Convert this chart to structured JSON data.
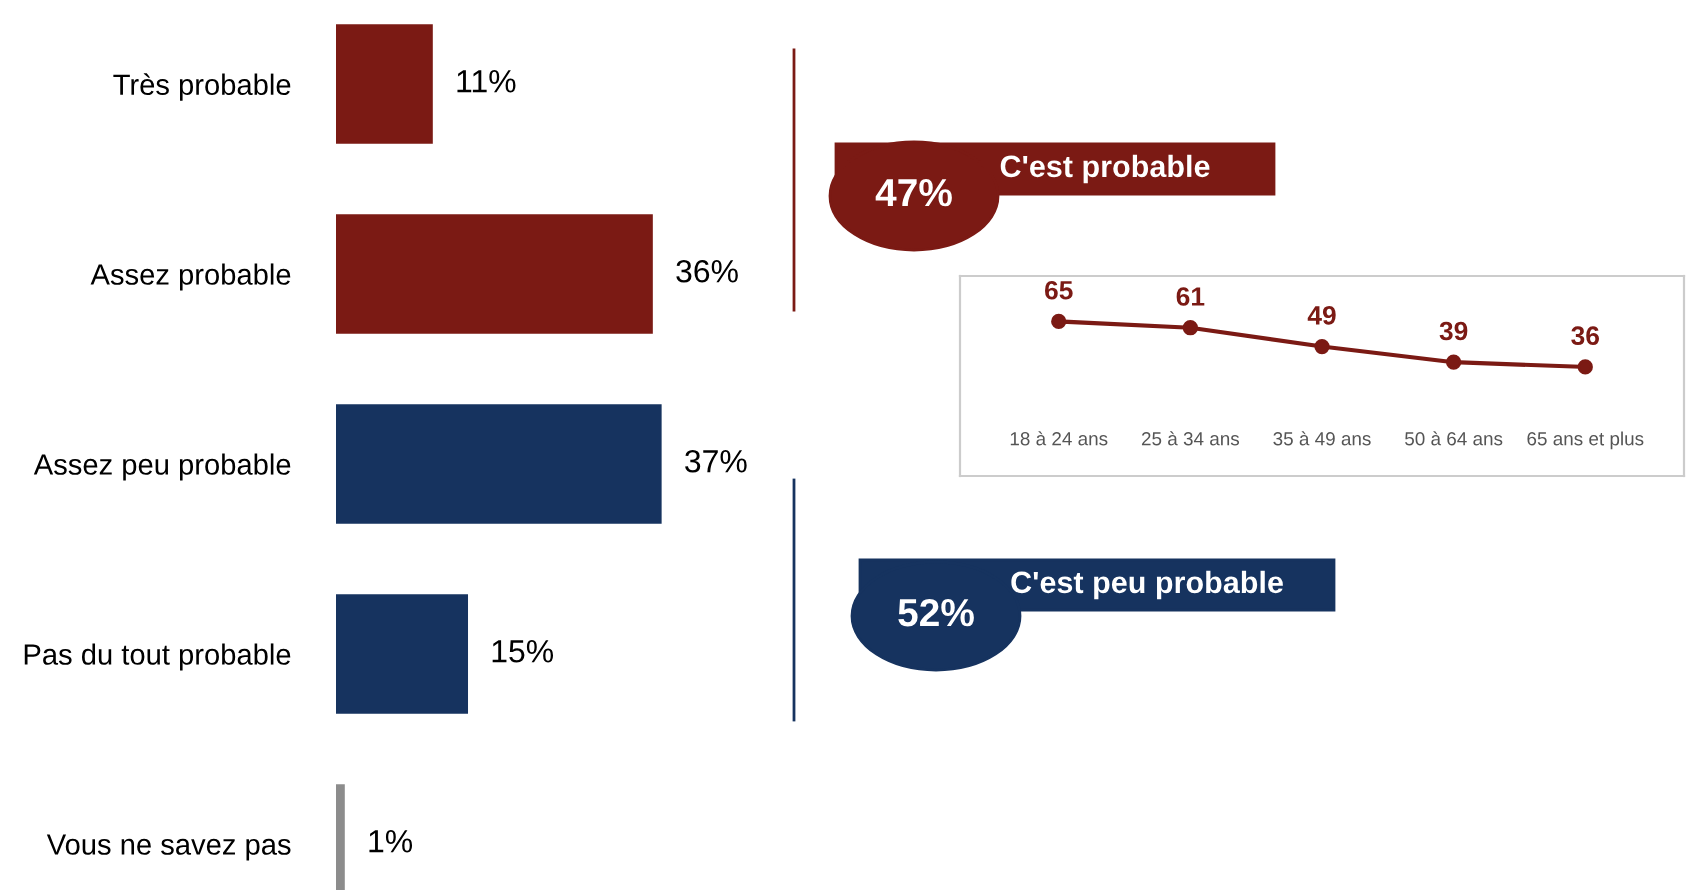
{
  "chart_data": [
    {
      "type": "bar",
      "orientation": "horizontal",
      "categories": [
        "Très probable",
        "Assez probable",
        "Assez peu probable",
        "Pas du tout probable",
        "Vous ne savez pas"
      ],
      "values": [
        11,
        36,
        37,
        15,
        1
      ],
      "colors": [
        "#7b1a14",
        "#7b1a14",
        "#16335f",
        "#16335f",
        "#8c8c8c"
      ],
      "value_labels": [
        "11%",
        "36%",
        "37%",
        "15%",
        "1%"
      ],
      "annotations": [
        "47%",
        "C'est probable",
        "52%",
        "C'est peu probable"
      ],
      "grid": false,
      "legend": false
    },
    {
      "type": "line",
      "categories": [
        "18 à 24 ans",
        "25 à 34 ans",
        "35 à 49 ans",
        "50 à 64 ans",
        "65 ans et plus"
      ],
      "series": [
        {
          "color": "#7b1a14",
          "values": [
            65,
            61,
            49,
            39,
            36
          ]
        }
      ],
      "data_labels": true,
      "marker": "circle",
      "line_style": "solid",
      "grid": false,
      "legend": false
    }
  ]
}
